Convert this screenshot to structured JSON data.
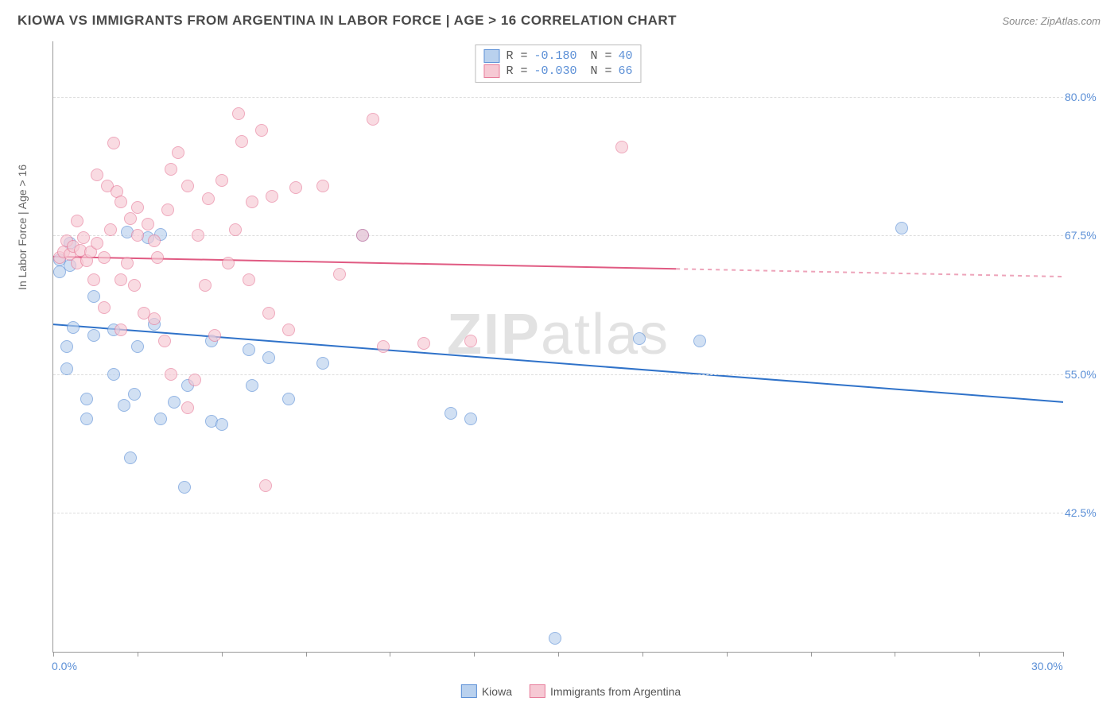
{
  "title": "KIOWA VS IMMIGRANTS FROM ARGENTINA IN LABOR FORCE | AGE > 16 CORRELATION CHART",
  "source": "Source: ZipAtlas.com",
  "watermark_a": "ZIP",
  "watermark_b": "atlas",
  "chart": {
    "type": "scatter",
    "y_axis_label": "In Labor Force | Age > 16",
    "background_color": "#ffffff",
    "grid_color": "#dddddd",
    "axis_color": "#999999",
    "label_color": "#5b8fd6",
    "xlim": [
      0,
      30
    ],
    "ylim": [
      30,
      85
    ],
    "xticks": [
      0,
      2.5,
      5,
      7.5,
      10,
      12.5,
      15,
      17.5,
      20,
      22.5,
      25,
      27.5,
      30
    ],
    "xtick_labels": {
      "0": "0.0%",
      "30": "30.0%"
    },
    "yticks": [
      42.5,
      55.0,
      67.5,
      80.0
    ],
    "ytick_labels": [
      "42.5%",
      "55.0%",
      "67.5%",
      "80.0%"
    ],
    "marker_radius": 7,
    "marker_stroke_width": 1.5,
    "series": [
      {
        "name": "Kiowa",
        "fill": "#b9d1ee",
        "stroke": "#5b8fd6",
        "fill_opacity": 0.65,
        "R": "-0.180",
        "N": "40",
        "trend": {
          "x1": 0,
          "y1": 59.5,
          "x2": 30,
          "y2": 52.5,
          "color": "#2f72c9",
          "width": 2
        },
        "points": [
          [
            0.2,
            65.3
          ],
          [
            0.5,
            66.8
          ],
          [
            2.2,
            67.8
          ],
          [
            3.2,
            67.6
          ],
          [
            0.2,
            64.2
          ],
          [
            0.5,
            64.8
          ],
          [
            1.2,
            62.0
          ],
          [
            0.6,
            59.2
          ],
          [
            0.4,
            57.5
          ],
          [
            0.4,
            55.5
          ],
          [
            1.2,
            58.5
          ],
          [
            1.8,
            59.0
          ],
          [
            2.5,
            57.5
          ],
          [
            2.8,
            67.3
          ],
          [
            1.0,
            52.8
          ],
          [
            1.0,
            51.0
          ],
          [
            2.3,
            47.5
          ],
          [
            2.4,
            53.2
          ],
          [
            2.1,
            52.2
          ],
          [
            3.2,
            51.0
          ],
          [
            3.6,
            52.5
          ],
          [
            3.9,
            44.8
          ],
          [
            4.7,
            50.8
          ],
          [
            5.0,
            50.5
          ],
          [
            5.8,
            57.2
          ],
          [
            6.4,
            56.5
          ],
          [
            7.0,
            52.8
          ],
          [
            8.0,
            56.0
          ],
          [
            9.2,
            67.5
          ],
          [
            11.8,
            51.5
          ],
          [
            12.4,
            51.0
          ],
          [
            14.9,
            31.2
          ],
          [
            17.4,
            58.2
          ],
          [
            19.2,
            58.0
          ],
          [
            25.2,
            68.2
          ],
          [
            3.0,
            59.5
          ],
          [
            4.7,
            58.0
          ],
          [
            4.0,
            54.0
          ],
          [
            5.9,
            54.0
          ],
          [
            1.8,
            55.0
          ]
        ]
      },
      {
        "name": "Immigrants from Argentina",
        "fill": "#f6c9d4",
        "stroke": "#e77c9a",
        "fill_opacity": 0.65,
        "R": "-0.030",
        "N": "66",
        "trend": {
          "x1": 0,
          "y1": 65.6,
          "x2": 18.5,
          "y2": 64.5,
          "dash_x2": 30,
          "dash_y2": 63.8,
          "color": "#e05a82",
          "width": 2
        },
        "points": [
          [
            0.2,
            65.5
          ],
          [
            0.3,
            66.0
          ],
          [
            0.4,
            67.0
          ],
          [
            0.5,
            65.8
          ],
          [
            0.6,
            66.5
          ],
          [
            0.7,
            65.0
          ],
          [
            0.8,
            66.2
          ],
          [
            0.9,
            67.3
          ],
          [
            0.7,
            68.8
          ],
          [
            1.0,
            65.2
          ],
          [
            1.1,
            66.0
          ],
          [
            1.3,
            66.8
          ],
          [
            1.5,
            65.5
          ],
          [
            1.7,
            68.0
          ],
          [
            1.3,
            73.0
          ],
          [
            1.6,
            72.0
          ],
          [
            1.9,
            71.5
          ],
          [
            1.8,
            75.8
          ],
          [
            2.0,
            70.5
          ],
          [
            2.3,
            69.0
          ],
          [
            2.5,
            70.0
          ],
          [
            2.0,
            63.5
          ],
          [
            2.2,
            65.0
          ],
          [
            2.5,
            67.5
          ],
          [
            2.8,
            68.5
          ],
          [
            3.0,
            67.0
          ],
          [
            3.5,
            73.5
          ],
          [
            3.7,
            75.0
          ],
          [
            3.4,
            69.8
          ],
          [
            3.1,
            65.5
          ],
          [
            4.0,
            72.0
          ],
          [
            4.3,
            67.5
          ],
          [
            4.5,
            63.0
          ],
          [
            4.6,
            70.8
          ],
          [
            5.2,
            65.0
          ],
          [
            5.5,
            78.5
          ],
          [
            5.6,
            76.0
          ],
          [
            5.0,
            72.5
          ],
          [
            6.2,
            77.0
          ],
          [
            5.9,
            70.5
          ],
          [
            5.4,
            68.0
          ],
          [
            5.8,
            63.5
          ],
          [
            6.5,
            71.0
          ],
          [
            7.2,
            71.8
          ],
          [
            7.0,
            59.0
          ],
          [
            8.0,
            72.0
          ],
          [
            8.5,
            64.0
          ],
          [
            9.5,
            78.0
          ],
          [
            9.2,
            67.5
          ],
          [
            9.8,
            57.5
          ],
          [
            11.0,
            57.8
          ],
          [
            12.4,
            58.0
          ],
          [
            4.0,
            52.0
          ],
          [
            4.2,
            54.5
          ],
          [
            3.0,
            60.0
          ],
          [
            3.3,
            58.0
          ],
          [
            2.7,
            60.5
          ],
          [
            2.0,
            59.0
          ],
          [
            1.5,
            61.0
          ],
          [
            6.4,
            60.5
          ],
          [
            6.3,
            45.0
          ],
          [
            3.5,
            55.0
          ],
          [
            4.8,
            58.5
          ],
          [
            16.9,
            75.5
          ],
          [
            2.4,
            63.0
          ],
          [
            1.2,
            63.5
          ]
        ]
      }
    ]
  },
  "legend_bottom": [
    {
      "label": "Kiowa",
      "fill": "#b9d1ee",
      "stroke": "#5b8fd6"
    },
    {
      "label": "Immigrants from Argentina",
      "fill": "#f6c9d4",
      "stroke": "#e77c9a"
    }
  ]
}
